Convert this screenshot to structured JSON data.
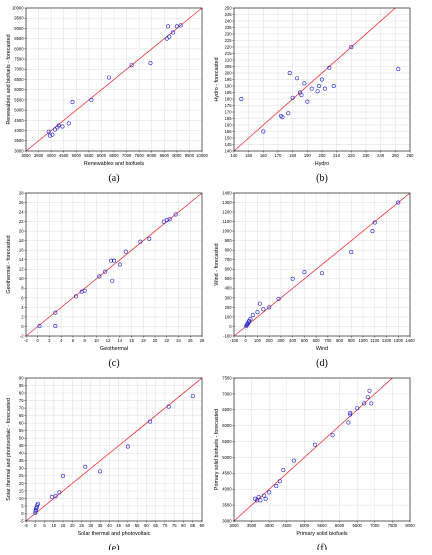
{
  "style": {
    "marker_color": "#1f1fd0",
    "identity_line_color": "#e8333a",
    "grid_color": "#d4d4d4",
    "frame_color": "#000000"
  },
  "chart_data": [
    {
      "caption": "(a)",
      "type": "scatter",
      "xlabel": "Renewables and biofuels",
      "ylabel": "Renewables and biofuels - forecasted",
      "xlim": [
        3000,
        10000
      ],
      "ylim": [
        3000,
        10000
      ],
      "xticks": [
        3000,
        3500,
        4000,
        4500,
        5000,
        5500,
        6000,
        6500,
        7000,
        7500,
        8000,
        8500,
        9000,
        9500,
        10000
      ],
      "yticks": [
        3000,
        3500,
        4000,
        4500,
        5000,
        5500,
        6000,
        6500,
        7000,
        7500,
        8000,
        8500,
        9000,
        9500,
        10000
      ],
      "xticklabels": [
        "3000",
        "3500",
        "4000",
        "4500",
        "5000",
        "5500",
        "6000",
        "6500",
        "7000",
        "7500",
        "8000",
        "8500",
        "9000",
        "9500",
        "10000"
      ],
      "yticklabels": [
        "3000",
        "3500",
        "4000",
        "4500",
        "5000",
        "5500",
        "6000",
        "6500",
        "7000",
        "7500",
        "8000",
        "8500",
        "9000",
        "9500",
        "10000"
      ],
      "reference_line": "y = x",
      "grid": true,
      "points": [
        {
          "x": 3900,
          "y": 3950
        },
        {
          "x": 3950,
          "y": 3750
        },
        {
          "x": 4050,
          "y": 3800
        },
        {
          "x": 4150,
          "y": 4050
        },
        {
          "x": 4250,
          "y": 4150
        },
        {
          "x": 4300,
          "y": 4250
        },
        {
          "x": 4450,
          "y": 4200
        },
        {
          "x": 4700,
          "y": 4350
        },
        {
          "x": 4850,
          "y": 5400
        },
        {
          "x": 5600,
          "y": 5500
        },
        {
          "x": 6300,
          "y": 6600
        },
        {
          "x": 7200,
          "y": 7200
        },
        {
          "x": 7950,
          "y": 7300
        },
        {
          "x": 8600,
          "y": 8500
        },
        {
          "x": 8700,
          "y": 8600
        },
        {
          "x": 8650,
          "y": 9100
        },
        {
          "x": 8850,
          "y": 8800
        },
        {
          "x": 9000,
          "y": 9100
        },
        {
          "x": 9150,
          "y": 9150
        }
      ]
    },
    {
      "caption": "(b)",
      "type": "scatter",
      "xlabel": "Hydro",
      "ylabel": "Hydro - forecasted",
      "xlim": [
        140,
        260
      ],
      "ylim": [
        140,
        250
      ],
      "xticks": [
        140,
        150,
        160,
        170,
        180,
        190,
        200,
        210,
        220,
        230,
        240,
        250,
        260
      ],
      "yticks": [
        140,
        145,
        150,
        155,
        160,
        165,
        170,
        175,
        180,
        185,
        190,
        195,
        200,
        205,
        210,
        215,
        220,
        225,
        230,
        235,
        240,
        245,
        250
      ],
      "xticklabels": [
        "140",
        "150",
        "160",
        "170",
        "180",
        "190",
        "200",
        "210",
        "220",
        "230",
        "240",
        "250",
        "260"
      ],
      "yticklabels": [
        "140",
        "145",
        "150",
        "155",
        "160",
        "165",
        "170",
        "175",
        "180",
        "185",
        "190",
        "195",
        "200",
        "205",
        "210",
        "215",
        "220",
        "225",
        "230",
        "235",
        "240",
        "245",
        "250"
      ],
      "reference_line": "y = x",
      "grid": true,
      "points": [
        {
          "x": 145,
          "y": 180
        },
        {
          "x": 160,
          "y": 155
        },
        {
          "x": 172,
          "y": 167
        },
        {
          "x": 173,
          "y": 166
        },
        {
          "x": 177,
          "y": 169
        },
        {
          "x": 178,
          "y": 200
        },
        {
          "x": 180,
          "y": 181
        },
        {
          "x": 183,
          "y": 196
        },
        {
          "x": 185,
          "y": 185
        },
        {
          "x": 186,
          "y": 183
        },
        {
          "x": 188,
          "y": 192
        },
        {
          "x": 190,
          "y": 178
        },
        {
          "x": 193,
          "y": 188
        },
        {
          "x": 197,
          "y": 186
        },
        {
          "x": 198,
          "y": 190
        },
        {
          "x": 200,
          "y": 195
        },
        {
          "x": 202,
          "y": 188
        },
        {
          "x": 205,
          "y": 204
        },
        {
          "x": 208,
          "y": 190
        },
        {
          "x": 220,
          "y": 220
        },
        {
          "x": 252,
          "y": 203
        }
      ]
    },
    {
      "caption": "(c)",
      "type": "scatter",
      "xlabel": "Geothermal",
      "ylabel": "Geothermal - forecasted",
      "xlim": [
        -2,
        28
      ],
      "ylim": [
        -2,
        28
      ],
      "xticks": [
        -2,
        0,
        2,
        4,
        6,
        8,
        10,
        12,
        14,
        16,
        18,
        20,
        22,
        24,
        26,
        28
      ],
      "yticks": [
        -2,
        0,
        2,
        4,
        6,
        8,
        10,
        12,
        14,
        16,
        18,
        20,
        22,
        24,
        26,
        28
      ],
      "xticklabels": [
        "-2",
        "0",
        "2",
        "4",
        "6",
        "8",
        "10",
        "12",
        "14",
        "16",
        "18",
        "20",
        "22",
        "24",
        "26",
        "28"
      ],
      "yticklabels": [
        "-2",
        "0",
        "2",
        "4",
        "6",
        "8",
        "10",
        "12",
        "14",
        "16",
        "18",
        "20",
        "22",
        "24",
        "26",
        "28"
      ],
      "reference_line": "y = x",
      "grid": true,
      "points": [
        {
          "x": 0.3,
          "y": 0.1
        },
        {
          "x": 3.0,
          "y": 0.1
        },
        {
          "x": 3.0,
          "y": 2.9
        },
        {
          "x": 6.5,
          "y": 6.3
        },
        {
          "x": 7.5,
          "y": 7.3
        },
        {
          "x": 8.0,
          "y": 7.5
        },
        {
          "x": 10.5,
          "y": 10.5
        },
        {
          "x": 11.5,
          "y": 11.5
        },
        {
          "x": 12.5,
          "y": 13.8
        },
        {
          "x": 12.7,
          "y": 9.6
        },
        {
          "x": 13.0,
          "y": 13.8
        },
        {
          "x": 14.0,
          "y": 13.0
        },
        {
          "x": 15.0,
          "y": 15.7
        },
        {
          "x": 17.5,
          "y": 17.8
        },
        {
          "x": 19.0,
          "y": 18.4
        },
        {
          "x": 21.5,
          "y": 22.0
        },
        {
          "x": 22.0,
          "y": 22.3
        },
        {
          "x": 22.5,
          "y": 22.5
        },
        {
          "x": 23.5,
          "y": 23.5
        }
      ]
    },
    {
      "caption": "(d)",
      "type": "scatter",
      "xlabel": "Wind",
      "ylabel": "Wind - forecasted",
      "xlim": [
        -100,
        1400
      ],
      "ylim": [
        -100,
        1400
      ],
      "xticks": [
        -100,
        0,
        100,
        200,
        300,
        400,
        500,
        600,
        700,
        800,
        900,
        1000,
        1100,
        1200,
        1300,
        1400
      ],
      "yticks": [
        -100,
        0,
        100,
        200,
        300,
        400,
        500,
        600,
        700,
        800,
        900,
        1000,
        1100,
        1200,
        1300,
        1400
      ],
      "xticklabels": [
        "-100",
        "0",
        "100",
        "200",
        "300",
        "400",
        "500",
        "600",
        "700",
        "800",
        "900",
        "1000",
        "1100",
        "1200",
        "1300",
        "1400"
      ],
      "yticklabels": [
        "-100",
        "0",
        "100",
        "200",
        "300",
        "400",
        "500",
        "600",
        "700",
        "800",
        "900",
        "1000",
        "1100",
        "1200",
        "1300",
        "1400"
      ],
      "reference_line": "y = x",
      "grid": true,
      "points": [
        {
          "x": 5,
          "y": 5
        },
        {
          "x": 10,
          "y": 15
        },
        {
          "x": 15,
          "y": 25
        },
        {
          "x": 20,
          "y": 35
        },
        {
          "x": 25,
          "y": 50
        },
        {
          "x": 30,
          "y": 60
        },
        {
          "x": 40,
          "y": 80
        },
        {
          "x": 60,
          "y": 120
        },
        {
          "x": 100,
          "y": 150
        },
        {
          "x": 120,
          "y": 240
        },
        {
          "x": 150,
          "y": 180
        },
        {
          "x": 200,
          "y": 200
        },
        {
          "x": 280,
          "y": 290
        },
        {
          "x": 400,
          "y": 500
        },
        {
          "x": 500,
          "y": 570
        },
        {
          "x": 650,
          "y": 560
        },
        {
          "x": 900,
          "y": 780
        },
        {
          "x": 1080,
          "y": 1000
        },
        {
          "x": 1100,
          "y": 1090
        },
        {
          "x": 1300,
          "y": 1300
        }
      ]
    },
    {
      "caption": "(e)",
      "type": "scatter",
      "xlabel": "Solar thermal and photovoltaic",
      "ylabel": "Solar thermal and photovoltaic - forecasted",
      "xlim": [
        -5,
        90
      ],
      "ylim": [
        -5,
        90
      ],
      "xticks": [
        -5,
        0,
        5,
        10,
        15,
        20,
        25,
        30,
        35,
        40,
        45,
        50,
        55,
        60,
        65,
        70,
        75,
        80,
        85,
        90
      ],
      "yticks": [
        -5,
        0,
        5,
        10,
        15,
        20,
        25,
        30,
        35,
        40,
        45,
        50,
        55,
        60,
        65,
        70,
        75,
        80,
        85,
        90
      ],
      "xticklabels": [
        "-5",
        "0",
        "5",
        "10",
        "15",
        "20",
        "25",
        "30",
        "35",
        "40",
        "45",
        "50",
        "55",
        "60",
        "65",
        "70",
        "75",
        "80",
        "85",
        "90"
      ],
      "yticklabels": [
        "-5",
        "0",
        "5",
        "10",
        "15",
        "20",
        "25",
        "30",
        "35",
        "40",
        "45",
        "50",
        "55",
        "60",
        "65",
        "70",
        "75",
        "80",
        "85",
        "90"
      ],
      "reference_line": "y = x",
      "grid": true,
      "points": [
        {
          "x": 0.0,
          "y": 0.5
        },
        {
          "x": 0.2,
          "y": 1.5
        },
        {
          "x": 0.3,
          "y": 2.5
        },
        {
          "x": 0.5,
          "y": 3.5
        },
        {
          "x": 0.8,
          "y": 4.0
        },
        {
          "x": 1.0,
          "y": 5.5
        },
        {
          "x": 1.5,
          "y": 6.5
        },
        {
          "x": 9.0,
          "y": 11.0
        },
        {
          "x": 11.0,
          "y": 11.5
        },
        {
          "x": 13.0,
          "y": 14.0
        },
        {
          "x": 15.0,
          "y": 25.0
        },
        {
          "x": 27.0,
          "y": 31.0
        },
        {
          "x": 35.0,
          "y": 28.0
        },
        {
          "x": 50.0,
          "y": 44.5
        },
        {
          "x": 62.0,
          "y": 61.0
        },
        {
          "x": 72.0,
          "y": 71.0
        },
        {
          "x": 85.0,
          "y": 78.0
        }
      ]
    },
    {
      "caption": "(f)",
      "type": "scatter",
      "xlabel": "Primary solid biofuels",
      "ylabel": "Primary solid biofuels - forecasted",
      "xlim": [
        3000,
        8000
      ],
      "ylim": [
        3000,
        7500
      ],
      "xticks": [
        3000,
        3500,
        4000,
        4500,
        5000,
        5500,
        6000,
        6500,
        7000,
        7500,
        8000
      ],
      "yticks": [
        3000,
        3500,
        4000,
        4500,
        5000,
        5500,
        6000,
        6500,
        7000,
        7500
      ],
      "xticklabels": [
        "3000",
        "3500",
        "4000",
        "4500",
        "5000",
        "5500",
        "6000",
        "6500",
        "7000",
        "7500",
        "8000"
      ],
      "yticklabels": [
        "3000",
        "3500",
        "4000",
        "4500",
        "5000",
        "5500",
        "6000",
        "6500",
        "7000",
        "7500"
      ],
      "reference_line": "y = x",
      "grid": true,
      "points": [
        {
          "x": 3600,
          "y": 3700
        },
        {
          "x": 3650,
          "y": 3650
        },
        {
          "x": 3700,
          "y": 3750
        },
        {
          "x": 3750,
          "y": 3650
        },
        {
          "x": 3850,
          "y": 3800
        },
        {
          "x": 3900,
          "y": 3700
        },
        {
          "x": 4000,
          "y": 3900
        },
        {
          "x": 4200,
          "y": 4100
        },
        {
          "x": 4300,
          "y": 4250
        },
        {
          "x": 4400,
          "y": 4600
        },
        {
          "x": 4700,
          "y": 4900
        },
        {
          "x": 5300,
          "y": 5400
        },
        {
          "x": 5800,
          "y": 5700
        },
        {
          "x": 6250,
          "y": 6100
        },
        {
          "x": 6300,
          "y": 6350
        },
        {
          "x": 6300,
          "y": 6400
        },
        {
          "x": 6500,
          "y": 6550
        },
        {
          "x": 6700,
          "y": 6700
        },
        {
          "x": 6800,
          "y": 6900
        },
        {
          "x": 6850,
          "y": 7100
        },
        {
          "x": 6900,
          "y": 6700
        }
      ]
    }
  ]
}
